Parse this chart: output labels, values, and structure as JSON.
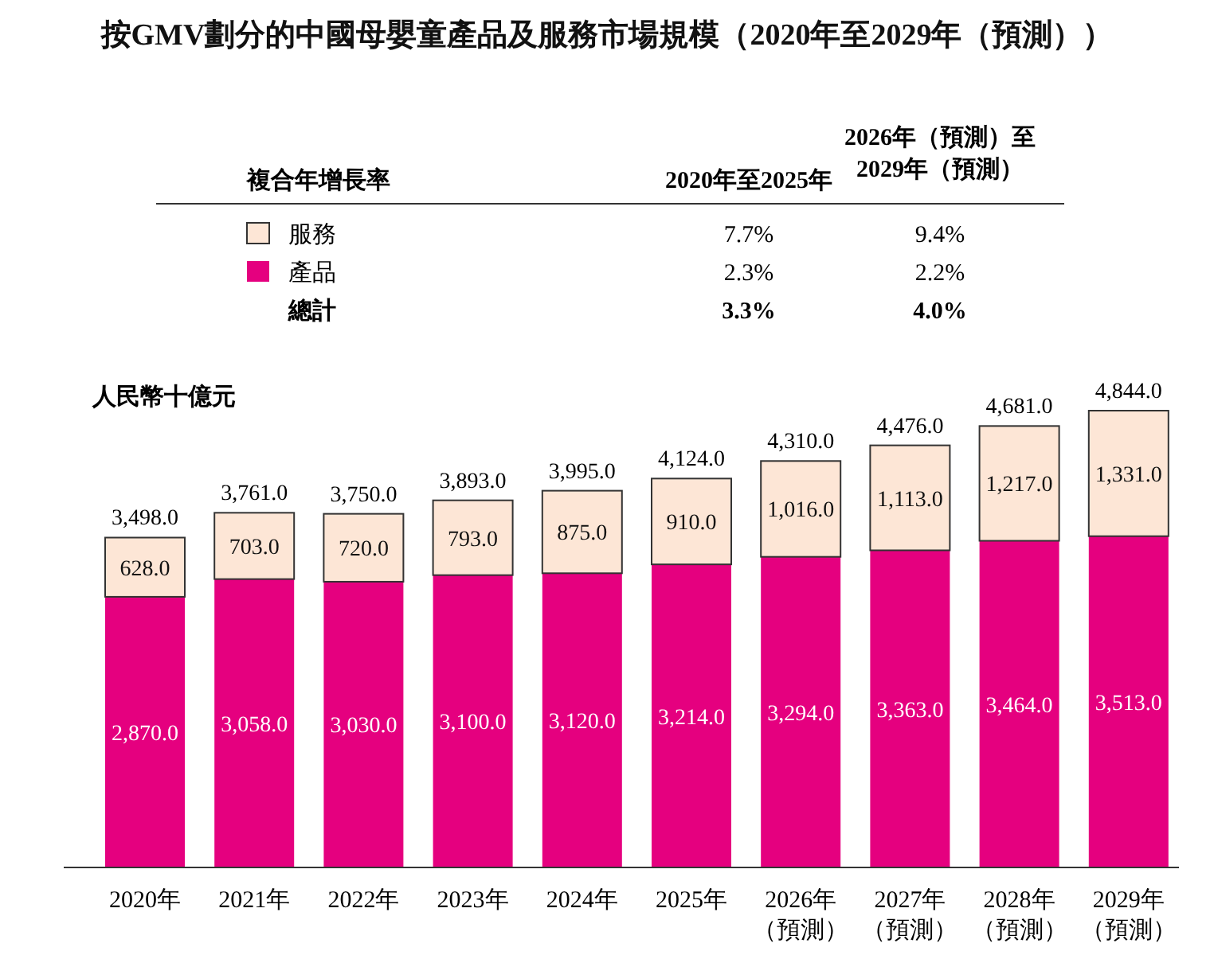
{
  "chart_data": {
    "type": "bar",
    "stacked": true,
    "title": "按GMV劃分的中國母嬰童產品及服務市場規模（2020年至2029年（預測））",
    "ylabel": "人民幣十億元",
    "legend_title": "複合年增長率",
    "legend": "top",
    "categories": [
      "2020年",
      "2021年",
      "2022年",
      "2023年",
      "2024年",
      "2025年",
      "2026年（預測）",
      "2027年（預測）",
      "2028年（預測）",
      "2029年（預測）"
    ],
    "series": [
      {
        "name": "產品",
        "color": "#e5007f",
        "values": [
          2870.0,
          3058.0,
          3030.0,
          3100.0,
          3120.0,
          3214.0,
          3294.0,
          3363.0,
          3464.0,
          3513.0
        ],
        "value_labels": [
          "2,870.0",
          "3,058.0",
          "3,030.0",
          "3,100.0",
          "3,120.0",
          "3,214.0",
          "3,294.0",
          "3,363.0",
          "3,464.0",
          "3,513.0"
        ]
      },
      {
        "name": "服務",
        "color": "#fde6d6",
        "values": [
          628.0,
          703.0,
          720.0,
          793.0,
          875.0,
          910.0,
          1016.0,
          1113.0,
          1217.0,
          1331.0
        ],
        "value_labels": [
          "628.0",
          "703.0",
          "720.0",
          "793.0",
          "875.0",
          "910.0",
          "1,016.0",
          "1,113.0",
          "1,217.0",
          "1,331.0"
        ]
      }
    ],
    "totals": [
      "3,498.0",
      "3,761.0",
      "3,750.0",
      "3,893.0",
      "3,995.0",
      "4,124.0",
      "4,310.0",
      "4,476.0",
      "4,681.0",
      "4,844.0"
    ],
    "annotations": [
      "2020年至2025年",
      "2026年（預測）至2029年（預測）",
      "總計",
      "2.3%",
      "2.2%",
      "7.7%",
      "9.4%",
      "3.3%",
      "4.0%"
    ]
  }
}
